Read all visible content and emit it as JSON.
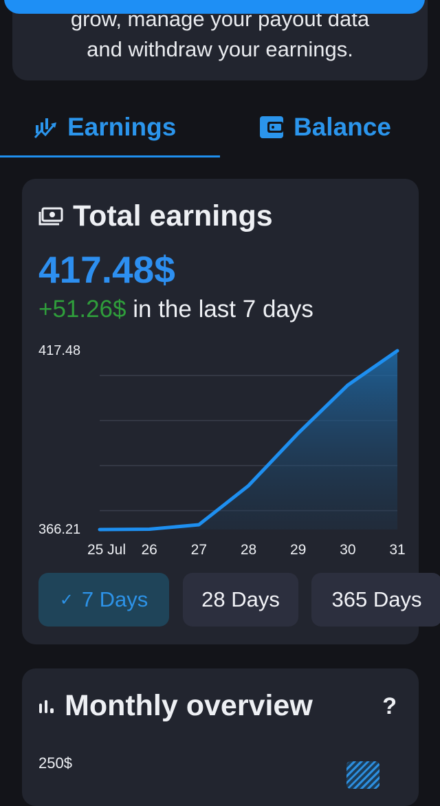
{
  "intro": {
    "line1": "grow, manage your payout data",
    "line2": "and withdraw your earnings."
  },
  "tabs": [
    {
      "label": "Earnings",
      "icon": "chart-trend-icon",
      "active": true
    },
    {
      "label": "Balance",
      "icon": "wallet-icon",
      "active": false
    }
  ],
  "total_earnings": {
    "title": "Total earnings",
    "icon": "money-icon",
    "value": "417.48$",
    "change": "+51.26$",
    "change_suffix": " in the last 7 days"
  },
  "chart_data": {
    "type": "area",
    "x": [
      "25 Jul",
      "26",
      "27",
      "28",
      "29",
      "30",
      "31"
    ],
    "values": [
      366.21,
      366.3,
      367.6,
      378.8,
      393.8,
      407.6,
      417.48
    ],
    "y_tick_labels": [
      "417.48",
      "366.21"
    ],
    "ylim": [
      366.21,
      417.48
    ],
    "grid": true,
    "color": "#1e8ff0"
  },
  "ranges": [
    {
      "label": "7 Days",
      "active": true,
      "check": "✓"
    },
    {
      "label": "28 Days",
      "active": false
    },
    {
      "label": "365 Days",
      "active": false
    }
  ],
  "monthly": {
    "title": "Monthly overview",
    "icon": "bar-chart-icon",
    "help": "?",
    "y_top": "250$"
  },
  "colors": {
    "accent": "#1e8ff0",
    "positive": "#2f9e3b",
    "card": "#22252f",
    "background": "#131419"
  }
}
